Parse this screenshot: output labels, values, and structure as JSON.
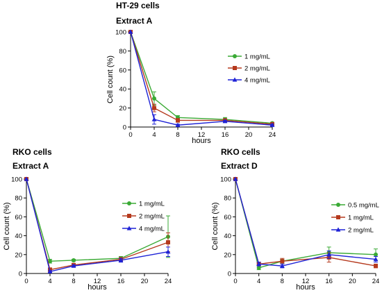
{
  "chart_data": [
    {
      "type": "line",
      "title": "HT-29 cells",
      "subtitle": "Extract A",
      "xlabel": "hours",
      "ylabel": "Cell count (%)",
      "xlim": [
        0,
        24
      ],
      "ylim": [
        0,
        100
      ],
      "xticks": [
        0,
        4,
        8,
        12,
        16,
        20,
        24
      ],
      "yticks": [
        0,
        20,
        40,
        60,
        80,
        100
      ],
      "legend_position": "right",
      "x": [
        0,
        4,
        8,
        16,
        24
      ],
      "series": [
        {
          "name": "1 mg/mL",
          "color": "#3aaa35",
          "marker": "circle",
          "values": [
            100,
            30,
            10,
            8,
            4
          ],
          "err": [
            0,
            7,
            2,
            2,
            1
          ]
        },
        {
          "name": "2 mg/mL",
          "color": "#b5391d",
          "marker": "square",
          "values": [
            100,
            20,
            7,
            7,
            3
          ],
          "err": [
            0,
            4,
            2,
            1,
            1
          ]
        },
        {
          "name": "4 mg/mL",
          "color": "#1e22d6",
          "marker": "triangle",
          "values": [
            100,
            8,
            2,
            6,
            2
          ],
          "err": [
            0,
            5,
            1,
            1,
            1
          ]
        }
      ]
    },
    {
      "type": "line",
      "title": "RKO cells",
      "subtitle": "Extract A",
      "xlabel": "hours",
      "ylabel": "Cell count (%)",
      "xlim": [
        0,
        24
      ],
      "ylim": [
        0,
        100
      ],
      "xticks": [
        0,
        4,
        8,
        12,
        16,
        20,
        24
      ],
      "yticks": [
        0,
        20,
        40,
        60,
        80,
        100
      ],
      "legend_position": "right",
      "x": [
        0,
        4,
        8,
        16,
        24
      ],
      "series": [
        {
          "name": "1 mg/mL",
          "color": "#3aaa35",
          "marker": "circle",
          "values": [
            100,
            13,
            14,
            16,
            39
          ],
          "err": [
            0,
            2,
            1,
            2,
            22
          ]
        },
        {
          "name": "2 mg/mL",
          "color": "#b5391d",
          "marker": "square",
          "values": [
            100,
            4,
            9,
            15,
            33
          ],
          "err": [
            0,
            2,
            1,
            2,
            10
          ]
        },
        {
          "name": "4 mg/mL",
          "color": "#1e22d6",
          "marker": "triangle",
          "values": [
            100,
            2,
            8,
            14,
            23
          ],
          "err": [
            0,
            1,
            1,
            2,
            5
          ]
        }
      ]
    },
    {
      "type": "line",
      "title": "RKO cells",
      "subtitle": "Extract D",
      "xlabel": "hours",
      "ylabel": "Cell count (%)",
      "xlim": [
        0,
        24
      ],
      "ylim": [
        0,
        100
      ],
      "xticks": [
        0,
        4,
        8,
        12,
        16,
        20,
        24
      ],
      "yticks": [
        0,
        20,
        40,
        60,
        80,
        100
      ],
      "legend_position": "right",
      "x": [
        0,
        4,
        8,
        16,
        24
      ],
      "series": [
        {
          "name": "0.5 mg/mL",
          "color": "#3aaa35",
          "marker": "circle",
          "values": [
            100,
            6,
            13,
            22,
            20
          ],
          "err": [
            0,
            2,
            2,
            6,
            6
          ]
        },
        {
          "name": "1 mg/mL",
          "color": "#b5391d",
          "marker": "square",
          "values": [
            100,
            10,
            13,
            17,
            8
          ],
          "err": [
            0,
            2,
            3,
            5,
            2
          ]
        },
        {
          "name": "2 mg/mL",
          "color": "#1e22d6",
          "marker": "triangle",
          "values": [
            100,
            10,
            8,
            20,
            15
          ],
          "err": [
            0,
            2,
            2,
            4,
            3
          ]
        }
      ]
    }
  ]
}
